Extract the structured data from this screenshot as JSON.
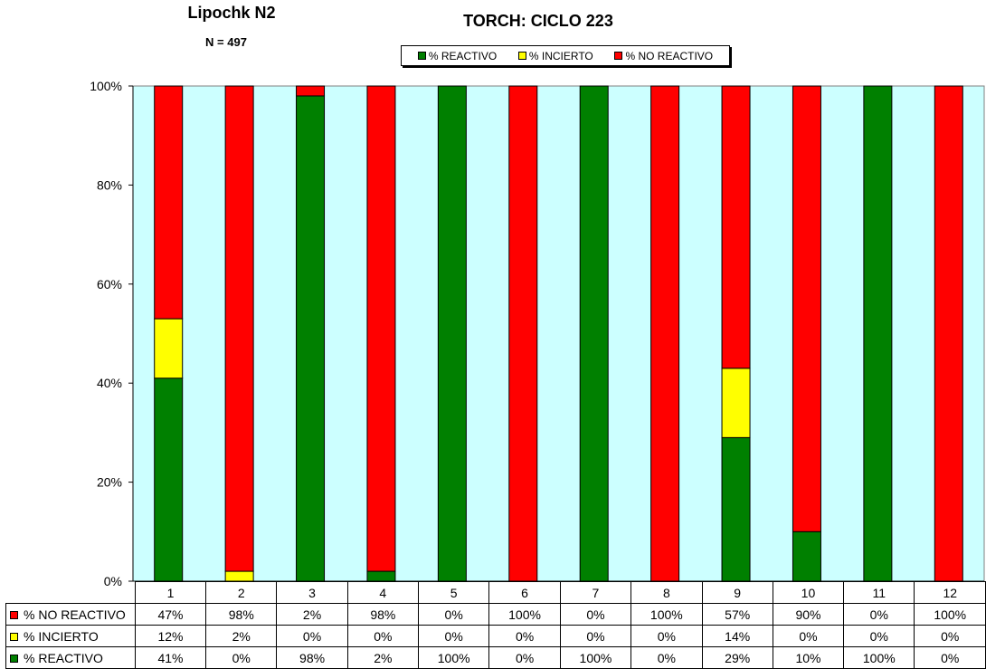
{
  "chart_data": {
    "type": "bar",
    "stacked": true,
    "title": "TORCH: CICLO 223",
    "header_title": "Lipochk N2",
    "header_subtitle": "N = 497",
    "categories": [
      "1",
      "2",
      "3",
      "4",
      "5",
      "6",
      "7",
      "8",
      "9",
      "10",
      "11",
      "12"
    ],
    "series": [
      {
        "name": "% REACTIVO",
        "table_label": "% REACTIVO",
        "color": "#008000",
        "values": [
          41,
          0,
          98,
          2,
          100,
          0,
          100,
          0,
          29,
          10,
          100,
          0
        ],
        "labels": [
          "41%",
          "0%",
          "98%",
          "2%",
          "100%",
          "0%",
          "100%",
          "0%",
          "29%",
          "10%",
          "100%",
          "0%"
        ]
      },
      {
        "name": "% INCIERTO",
        "table_label": "% INCIERTO",
        "color": "#ffff00",
        "values": [
          12,
          2,
          0,
          0,
          0,
          0,
          0,
          0,
          14,
          0,
          0,
          0
        ],
        "labels": [
          "12%",
          "2%",
          "0%",
          "0%",
          "0%",
          "0%",
          "0%",
          "0%",
          "14%",
          "0%",
          "0%",
          "0%"
        ]
      },
      {
        "name": "% NO REACTIVO",
        "table_label": "% NO REACTIVO",
        "color": "#ff0000",
        "values": [
          47,
          98,
          2,
          98,
          0,
          100,
          0,
          100,
          57,
          90,
          0,
          100
        ],
        "labels": [
          "47%",
          "98%",
          "2%",
          "98%",
          "0%",
          "100%",
          "0%",
          "100%",
          "57%",
          "90%",
          "0%",
          "100%"
        ]
      }
    ],
    "legend": [
      "% REACTIVO",
      "% INCIERTO",
      "% NO REACTIVO"
    ],
    "legend_labels": [
      "% REACTIVO",
      "% INCIERTO",
      "% NO REACTIVO"
    ],
    "ylim": [
      0,
      100
    ],
    "yticks": [
      0,
      20,
      40,
      60,
      80,
      100
    ],
    "ytick_labels": [
      "0%",
      "20%",
      "40%",
      "60%",
      "80%",
      "100%"
    ],
    "plot_background": "#ccffff",
    "grid": false,
    "legend_position": "top-center"
  }
}
